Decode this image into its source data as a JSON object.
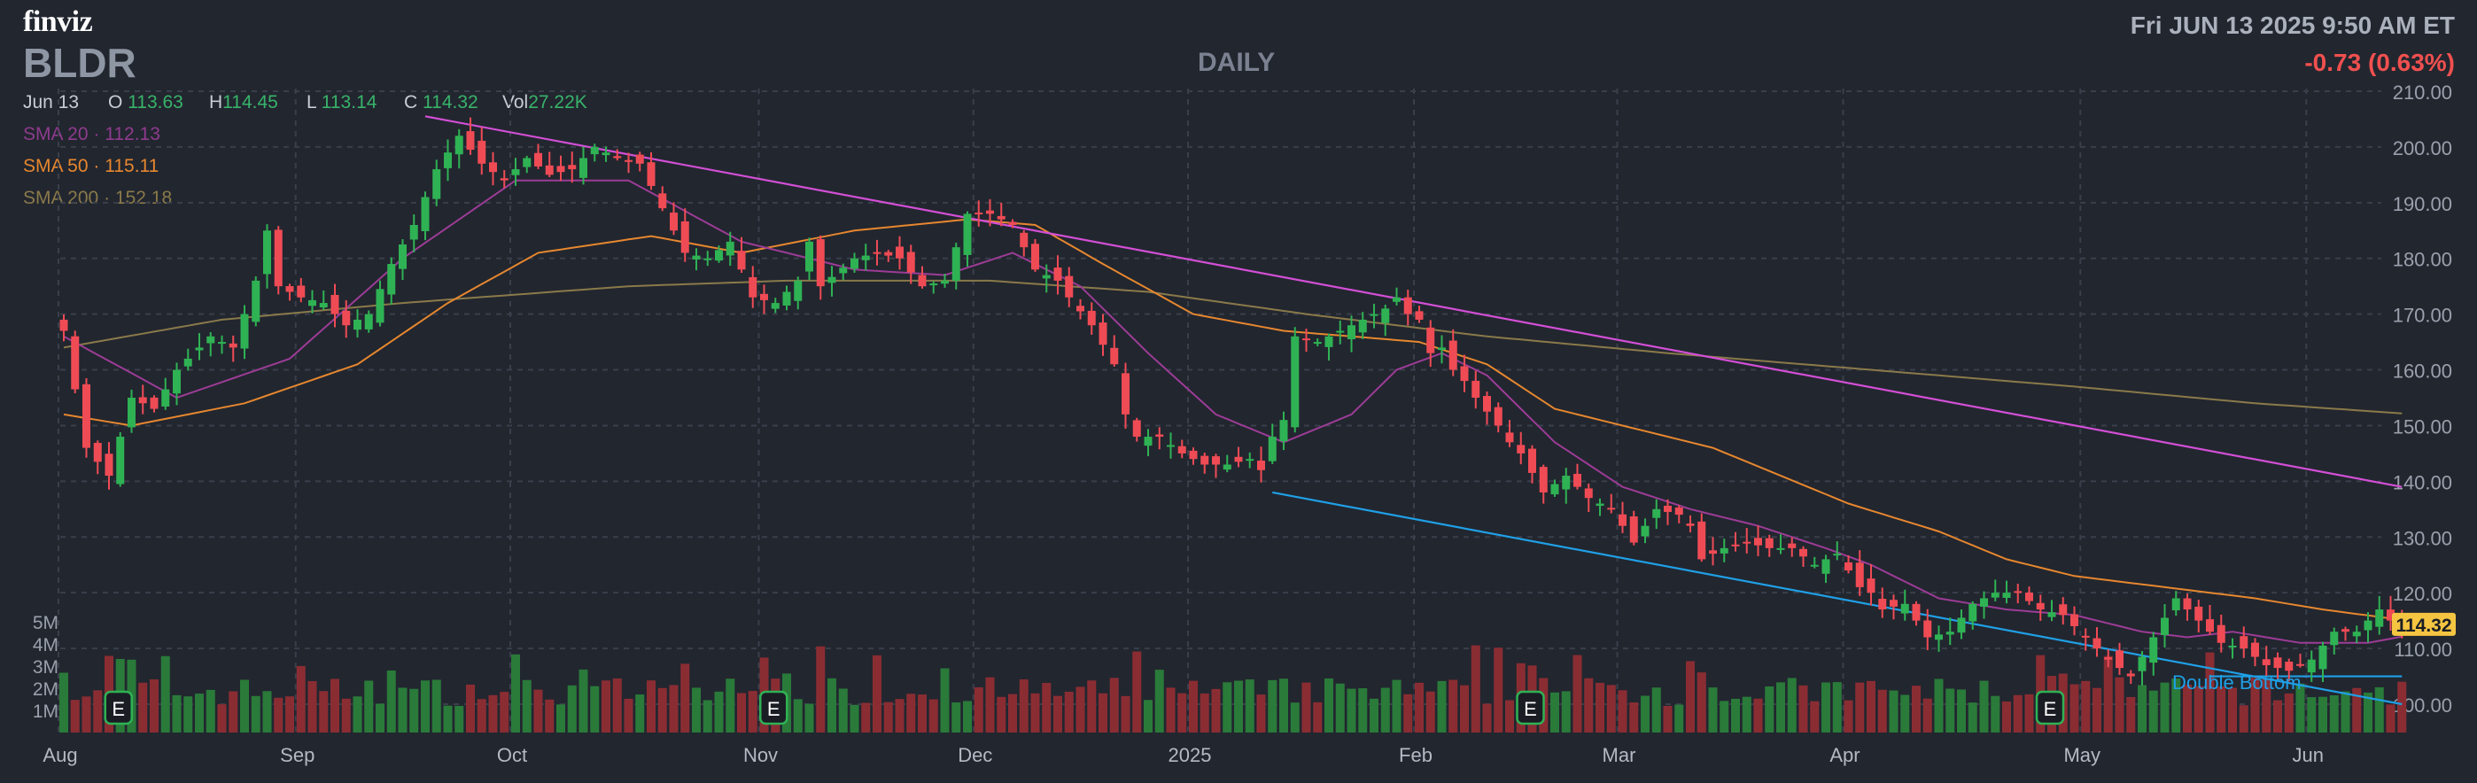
{
  "header": {
    "logo": "finviz",
    "ticker": "BLDR",
    "period": "DAILY",
    "datetime": "Fri JUN 13 2025 9:50 AM ET",
    "change": "-0.73 (0.63%)"
  },
  "ohlc": {
    "date": "Jun 13",
    "o_label": "O",
    "o": "113.63",
    "h_label": "H",
    "h": "114.45",
    "l_label": "L",
    "l": "113.14",
    "c_label": "C",
    "c": "114.32",
    "vol_label": "Vol",
    "vol": "27.22K"
  },
  "sma": {
    "sma20": {
      "label": "SMA 20",
      "sep": "·",
      "value": "112.13"
    },
    "sma50": {
      "label": "SMA 50",
      "sep": "·",
      "value": "115.11"
    },
    "sma200": {
      "label": "SMA 200",
      "sep": "·",
      "value": "152.18"
    }
  },
  "colors": {
    "background": "#22262f",
    "up": "#2fb254",
    "down": "#ef4b55",
    "up_volume": "#2a7a3a",
    "down_volume": "#8a2d33",
    "sma20": "#9c3c96",
    "sma50": "#e6872f",
    "sma200": "#8a7a4a",
    "resistance": "#d34fd6",
    "support": "#1fa0e6",
    "price_tag": "#f5c542",
    "grid": "#3a3f4b"
  },
  "chart_data": {
    "type": "candlestick",
    "title": "BLDR DAILY",
    "ylim": [
      95,
      210
    ],
    "y_ticks": [
      "210.00",
      "200.00",
      "190.00",
      "180.00",
      "170.00",
      "160.00",
      "150.00",
      "140.00",
      "130.00",
      "120.00",
      "110.00",
      "100.00"
    ],
    "volume_ticks": [
      "5M",
      "4M",
      "3M",
      "2M",
      "1M"
    ],
    "volume_max": 5000000,
    "x_labels": [
      "Aug",
      "Sep",
      "Oct",
      "Nov",
      "Dec",
      "2025",
      "Feb",
      "Mar",
      "Apr",
      "May",
      "Jun"
    ],
    "last_price": "114.32",
    "earnings_marker": "E",
    "earnings_bars": [
      5,
      63,
      130,
      176
    ],
    "support_pattern_label": "Double Bottom",
    "months": [
      {
        "label": "Aug",
        "bar": 0
      },
      {
        "label": "Sep",
        "bar": 21
      },
      {
        "label": "Oct",
        "bar": 40
      },
      {
        "label": "Nov",
        "bar": 62
      },
      {
        "label": "Dec",
        "bar": 81
      },
      {
        "label": "2025",
        "bar": 100
      },
      {
        "label": "Feb",
        "bar": 120
      },
      {
        "label": "Mar",
        "bar": 138
      },
      {
        "label": "Apr",
        "bar": 158
      },
      {
        "label": "May",
        "bar": 179
      },
      {
        "label": "Jun",
        "bar": 199
      }
    ],
    "anchors": [
      [
        0,
        167
      ],
      [
        2,
        146
      ],
      [
        4,
        141
      ],
      [
        6,
        155
      ],
      [
        8,
        153
      ],
      [
        10,
        160
      ],
      [
        13,
        166
      ],
      [
        15,
        164
      ],
      [
        17,
        176
      ],
      [
        18,
        185
      ],
      [
        19,
        175
      ],
      [
        21,
        173
      ],
      [
        23,
        172
      ],
      [
        25,
        168
      ],
      [
        27,
        170
      ],
      [
        29,
        179
      ],
      [
        31,
        186
      ],
      [
        33,
        196
      ],
      [
        35,
        202
      ],
      [
        37,
        197
      ],
      [
        39,
        194
      ],
      [
        41,
        198
      ],
      [
        43,
        195
      ],
      [
        45,
        196
      ],
      [
        47,
        200
      ],
      [
        49,
        198
      ],
      [
        51,
        197
      ],
      [
        53,
        189
      ],
      [
        55,
        181
      ],
      [
        57,
        180
      ],
      [
        59,
        183
      ],
      [
        61,
        173
      ],
      [
        63,
        172
      ],
      [
        65,
        176
      ],
      [
        66,
        183
      ],
      [
        67,
        175
      ],
      [
        70,
        180
      ],
      [
        72,
        181
      ],
      [
        74,
        180
      ],
      [
        76,
        175
      ],
      [
        78,
        176
      ],
      [
        80,
        188
      ],
      [
        82,
        188
      ],
      [
        84,
        186
      ],
      [
        85,
        182
      ],
      [
        86,
        178
      ],
      [
        88,
        176
      ],
      [
        89,
        173
      ],
      [
        91,
        168
      ],
      [
        93,
        161
      ],
      [
        94,
        152
      ],
      [
        95,
        148
      ],
      [
        97,
        148
      ],
      [
        99,
        145
      ],
      [
        101,
        143
      ],
      [
        103,
        143
      ],
      [
        105,
        144
      ],
      [
        106,
        142
      ],
      [
        107,
        148
      ],
      [
        108,
        151
      ],
      [
        109,
        166
      ],
      [
        111,
        165
      ],
      [
        113,
        167
      ],
      [
        115,
        169
      ],
      [
        117,
        171
      ],
      [
        118,
        173
      ],
      [
        119,
        170
      ],
      [
        120,
        169
      ],
      [
        121,
        163
      ],
      [
        122,
        164
      ],
      [
        123,
        160
      ],
      [
        124,
        158
      ],
      [
        125,
        155
      ],
      [
        127,
        150
      ],
      [
        128,
        147
      ],
      [
        129,
        145
      ],
      [
        131,
        138
      ],
      [
        133,
        141
      ],
      [
        135,
        137
      ],
      [
        137,
        135
      ],
      [
        139,
        129
      ],
      [
        141,
        135
      ],
      [
        143,
        134
      ],
      [
        144,
        132
      ],
      [
        145,
        126
      ],
      [
        147,
        128
      ],
      [
        149,
        129
      ],
      [
        151,
        128
      ],
      [
        153,
        128
      ],
      [
        155,
        125
      ],
      [
        157,
        127
      ],
      [
        159,
        121
      ],
      [
        160,
        120
      ],
      [
        161,
        117
      ],
      [
        163,
        118
      ],
      [
        165,
        112
      ],
      [
        167,
        113
      ],
      [
        169,
        118
      ],
      [
        171,
        120
      ],
      [
        173,
        120
      ],
      [
        175,
        117
      ],
      [
        177,
        116
      ],
      [
        179,
        112
      ],
      [
        181,
        108
      ],
      [
        183,
        105
      ],
      [
        185,
        112
      ],
      [
        187,
        119
      ],
      [
        189,
        115
      ],
      [
        191,
        111
      ],
      [
        193,
        110
      ],
      [
        195,
        107
      ],
      [
        197,
        106
      ],
      [
        199,
        108
      ],
      [
        201,
        113
      ],
      [
        203,
        113
      ],
      [
        205,
        117
      ],
      [
        206,
        115
      ],
      [
        207,
        114.32
      ]
    ],
    "sma20": [
      [
        0,
        166
      ],
      [
        10,
        155
      ],
      [
        20,
        162
      ],
      [
        30,
        180
      ],
      [
        40,
        194
      ],
      [
        50,
        194
      ],
      [
        60,
        183
      ],
      [
        70,
        178
      ],
      [
        78,
        177
      ],
      [
        84,
        181
      ],
      [
        90,
        175
      ],
      [
        96,
        163
      ],
      [
        102,
        152
      ],
      [
        108,
        147
      ],
      [
        114,
        152
      ],
      [
        118,
        160
      ],
      [
        122,
        163
      ],
      [
        126,
        159
      ],
      [
        132,
        147
      ],
      [
        138,
        139
      ],
      [
        144,
        135
      ],
      [
        150,
        132
      ],
      [
        156,
        128
      ],
      [
        160,
        125
      ],
      [
        166,
        119
      ],
      [
        172,
        117
      ],
      [
        178,
        116
      ],
      [
        184,
        113
      ],
      [
        188,
        112
      ],
      [
        192,
        113
      ],
      [
        198,
        111
      ],
      [
        204,
        111
      ],
      [
        207,
        112.13
      ]
    ],
    "sma50": [
      [
        0,
        152
      ],
      [
        6,
        150
      ],
      [
        16,
        154
      ],
      [
        26,
        161
      ],
      [
        34,
        172
      ],
      [
        42,
        181
      ],
      [
        52,
        184
      ],
      [
        60,
        181
      ],
      [
        70,
        185
      ],
      [
        80,
        187
      ],
      [
        86,
        186
      ],
      [
        92,
        179
      ],
      [
        100,
        170
      ],
      [
        108,
        167
      ],
      [
        114,
        166
      ],
      [
        120,
        165
      ],
      [
        126,
        161
      ],
      [
        132,
        153
      ],
      [
        138,
        150
      ],
      [
        146,
        146
      ],
      [
        152,
        141
      ],
      [
        158,
        136
      ],
      [
        166,
        131
      ],
      [
        172,
        126
      ],
      [
        178,
        123
      ],
      [
        186,
        121
      ],
      [
        194,
        119
      ],
      [
        200,
        117
      ],
      [
        207,
        115.11
      ]
    ],
    "sma200": [
      [
        0,
        164
      ],
      [
        14,
        169
      ],
      [
        30,
        172
      ],
      [
        50,
        175
      ],
      [
        64,
        176
      ],
      [
        82,
        176
      ],
      [
        96,
        174
      ],
      [
        110,
        170
      ],
      [
        126,
        166
      ],
      [
        142,
        163
      ],
      [
        160,
        160
      ],
      [
        178,
        157
      ],
      [
        194,
        154
      ],
      [
        207,
        152.18
      ]
    ],
    "resistance_line": [
      [
        32,
        205.5
      ],
      [
        207,
        139
      ]
    ],
    "support_line": [
      [
        107,
        138
      ],
      [
        207,
        100
      ]
    ],
    "double_bottom_line": [
      [
        190,
        105
      ],
      [
        207,
        105
      ]
    ]
  }
}
